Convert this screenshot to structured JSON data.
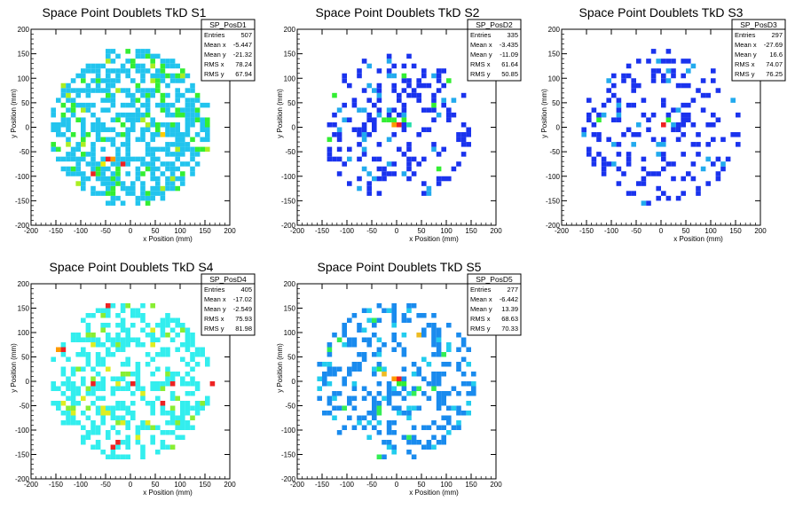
{
  "chart_data": [
    {
      "type": "heatmap",
      "title": "Space Point Doublets TkD S1",
      "xlabel": "x Position (mm)",
      "ylabel": "y Position (mm)",
      "xlim": [
        -200,
        200
      ],
      "ylim": [
        -200,
        200
      ],
      "xticks": [
        -200,
        -150,
        -100,
        -50,
        0,
        50,
        100,
        150,
        200
      ],
      "yticks": [
        -200,
        -150,
        -100,
        -50,
        0,
        50,
        100,
        150,
        200
      ],
      "stats": {
        "name": "SP_PosD1",
        "rows": [
          [
            "Entries",
            "507"
          ],
          [
            "Mean x",
            "-5.447"
          ],
          [
            "Mean y",
            "-21.32"
          ],
          [
            "RMS x",
            "78.24"
          ],
          [
            "RMS y",
            "67.94"
          ]
        ]
      },
      "cell_size": 10,
      "radius": 162,
      "density": 0.58,
      "seed": 11,
      "base_color": "#22c4ee",
      "scatter": [
        [
          "#33ee33",
          0.14
        ],
        [
          "#aaee22",
          0.04
        ]
      ],
      "hot": [
        {
          "x": -50,
          "y": -70,
          "color": "#ee2222"
        },
        {
          "x": -20,
          "y": -80,
          "color": "#ee2222"
        },
        {
          "x": -80,
          "y": -100,
          "color": "#ee2222"
        },
        {
          "x": -40,
          "y": -70,
          "color": "#ff9900"
        },
        {
          "x": 60,
          "y": -20,
          "color": "#ffcc00"
        },
        {
          "x": -60,
          "y": -80,
          "color": "#eeee00"
        },
        {
          "x": -30,
          "y": -90,
          "color": "#33ee33"
        },
        {
          "x": -70,
          "y": -90,
          "color": "#33ee33"
        }
      ]
    },
    {
      "type": "heatmap",
      "title": "Space Point Doublets TkD S2",
      "xlabel": "x Position (mm)",
      "ylabel": "y Position (mm)",
      "xlim": [
        -200,
        200
      ],
      "ylim": [
        -200,
        200
      ],
      "xticks": [
        -200,
        -150,
        -100,
        -50,
        0,
        50,
        100,
        150,
        200
      ],
      "yticks": [
        -200,
        -150,
        -100,
        -50,
        0,
        50,
        100,
        150,
        200
      ],
      "stats": {
        "name": "SP_PosD2",
        "rows": [
          [
            "Entries",
            "335"
          ],
          [
            "Mean x",
            "-3.435"
          ],
          [
            "Mean y",
            "-11.09"
          ],
          [
            "RMS x",
            "61.64"
          ],
          [
            "RMS y",
            "50.85"
          ]
        ]
      },
      "cell_size": 10,
      "radius": 150,
      "density": 0.24,
      "seed": 23,
      "base_color": "#1a33ee",
      "scatter": [
        [
          "#22aaee",
          0.22
        ],
        [
          "#33ee33",
          0.03
        ]
      ],
      "hot": [
        {
          "x": 0,
          "y": 0,
          "color": "#ee2222"
        },
        {
          "x": -10,
          "y": 0,
          "color": "#ff9900"
        },
        {
          "x": -30,
          "y": 10,
          "color": "#33ee33"
        },
        {
          "x": -20,
          "y": 10,
          "color": "#33ee33"
        },
        {
          "x": -10,
          "y": 10,
          "color": "#33ee33"
        },
        {
          "x": 10,
          "y": 10,
          "color": "#33ee33"
        },
        {
          "x": 20,
          "y": 0,
          "color": "#22ddaa"
        },
        {
          "x": -40,
          "y": 20,
          "color": "#22aaee"
        }
      ]
    },
    {
      "type": "heatmap",
      "title": "Space Point Doublets TkD S3",
      "xlabel": "x Position (mm)",
      "ylabel": "y Position (mm)",
      "xlim": [
        -200,
        200
      ],
      "ylim": [
        -200,
        200
      ],
      "xticks": [
        -200,
        -150,
        -100,
        -50,
        0,
        50,
        100,
        150,
        200
      ],
      "yticks": [
        -200,
        -150,
        -100,
        -50,
        0,
        50,
        100,
        150,
        200
      ],
      "stats": {
        "name": "SP_PosD3",
        "rows": [
          [
            "Entries",
            "297"
          ],
          [
            "Mean x",
            "-27.69"
          ],
          [
            "Mean y",
            "16.6"
          ],
          [
            "RMS x",
            "74.07"
          ],
          [
            "RMS y",
            "76.25"
          ]
        ]
      },
      "cell_size": 10,
      "radius": 160,
      "density": 0.22,
      "seed": 37,
      "base_color": "#1a33ee",
      "scatter": [
        [
          "#22aaee",
          0.1
        ]
      ],
      "hot": [
        {
          "x": 0,
          "y": 0,
          "color": "#ee2222"
        },
        {
          "x": 10,
          "y": 10,
          "color": "#33ee33"
        },
        {
          "x": -130,
          "y": 10,
          "color": "#33ee33"
        },
        {
          "x": -90,
          "y": 20,
          "color": "#22aaee"
        }
      ]
    },
    {
      "type": "heatmap",
      "title": "Space Point Doublets TkD S4",
      "xlabel": "x Position (mm)",
      "ylabel": "y Position (mm)",
      "xlim": [
        -200,
        200
      ],
      "ylim": [
        -200,
        200
      ],
      "xticks": [
        -200,
        -150,
        -100,
        -50,
        0,
        50,
        100,
        150,
        200
      ],
      "yticks": [
        -200,
        -150,
        -100,
        -50,
        0,
        50,
        100,
        150,
        200
      ],
      "stats": {
        "name": "SP_PosD4",
        "rows": [
          [
            "Entries",
            "405"
          ],
          [
            "Mean x",
            "-17.02"
          ],
          [
            "Mean y",
            "-2.549"
          ],
          [
            "RMS x",
            "75.93"
          ],
          [
            "RMS y",
            "81.98"
          ]
        ]
      },
      "cell_size": 10,
      "radius": 162,
      "density": 0.44,
      "seed": 51,
      "base_color": "#33eeee",
      "scatter": [
        [
          "#88ee33",
          0.07
        ],
        [
          "#ddee22",
          0.04
        ]
      ],
      "hot": [
        {
          "x": -50,
          "y": 150,
          "color": "#ee2222"
        },
        {
          "x": -140,
          "y": 60,
          "color": "#ee2222"
        },
        {
          "x": 0,
          "y": -10,
          "color": "#ee2222"
        },
        {
          "x": -80,
          "y": -10,
          "color": "#ee2222"
        },
        {
          "x": 80,
          "y": -10,
          "color": "#ee2222"
        },
        {
          "x": 160,
          "y": -10,
          "color": "#ee2222"
        },
        {
          "x": 60,
          "y": -50,
          "color": "#ee2222"
        },
        {
          "x": -30,
          "y": -130,
          "color": "#ee2222"
        },
        {
          "x": -40,
          "y": -140,
          "color": "#ee2222"
        },
        {
          "x": -150,
          "y": 60,
          "color": "#ff9900"
        }
      ]
    },
    {
      "type": "heatmap",
      "title": "Space Point Doublets TkD S5",
      "xlabel": "x Position (mm)",
      "ylabel": "y Position (mm)",
      "xlim": [
        -200,
        200
      ],
      "ylim": [
        -200,
        200
      ],
      "xticks": [
        -200,
        -150,
        -100,
        -50,
        0,
        50,
        100,
        150,
        200
      ],
      "yticks": [
        -200,
        -150,
        -100,
        -50,
        0,
        50,
        100,
        150,
        200
      ],
      "stats": {
        "name": "SP_PosD5",
        "rows": [
          [
            "Entries",
            "277"
          ],
          [
            "Mean x",
            "-6.442"
          ],
          [
            "Mean y",
            "13.39"
          ],
          [
            "RMS x",
            "68.63"
          ],
          [
            "RMS y",
            "70.33"
          ]
        ]
      },
      "cell_size": 10,
      "radius": 160,
      "density": 0.3,
      "seed": 67,
      "base_color": "#1a8bee",
      "scatter": [
        [
          "#22ccee",
          0.14
        ],
        [
          "#33ee55",
          0.05
        ]
      ],
      "hot": [
        {
          "x": 0,
          "y": 0,
          "color": "#ee2222"
        },
        {
          "x": -10,
          "y": 0,
          "color": "#ff9900"
        },
        {
          "x": -30,
          "y": 10,
          "color": "#eebb22"
        },
        {
          "x": 0,
          "y": -10,
          "color": "#33ee33"
        },
        {
          "x": 10,
          "y": -10,
          "color": "#33ee33"
        },
        {
          "x": 40,
          "y": 90,
          "color": "#eebb22"
        },
        {
          "x": -40,
          "y": -70,
          "color": "#33ee55"
        }
      ]
    }
  ]
}
